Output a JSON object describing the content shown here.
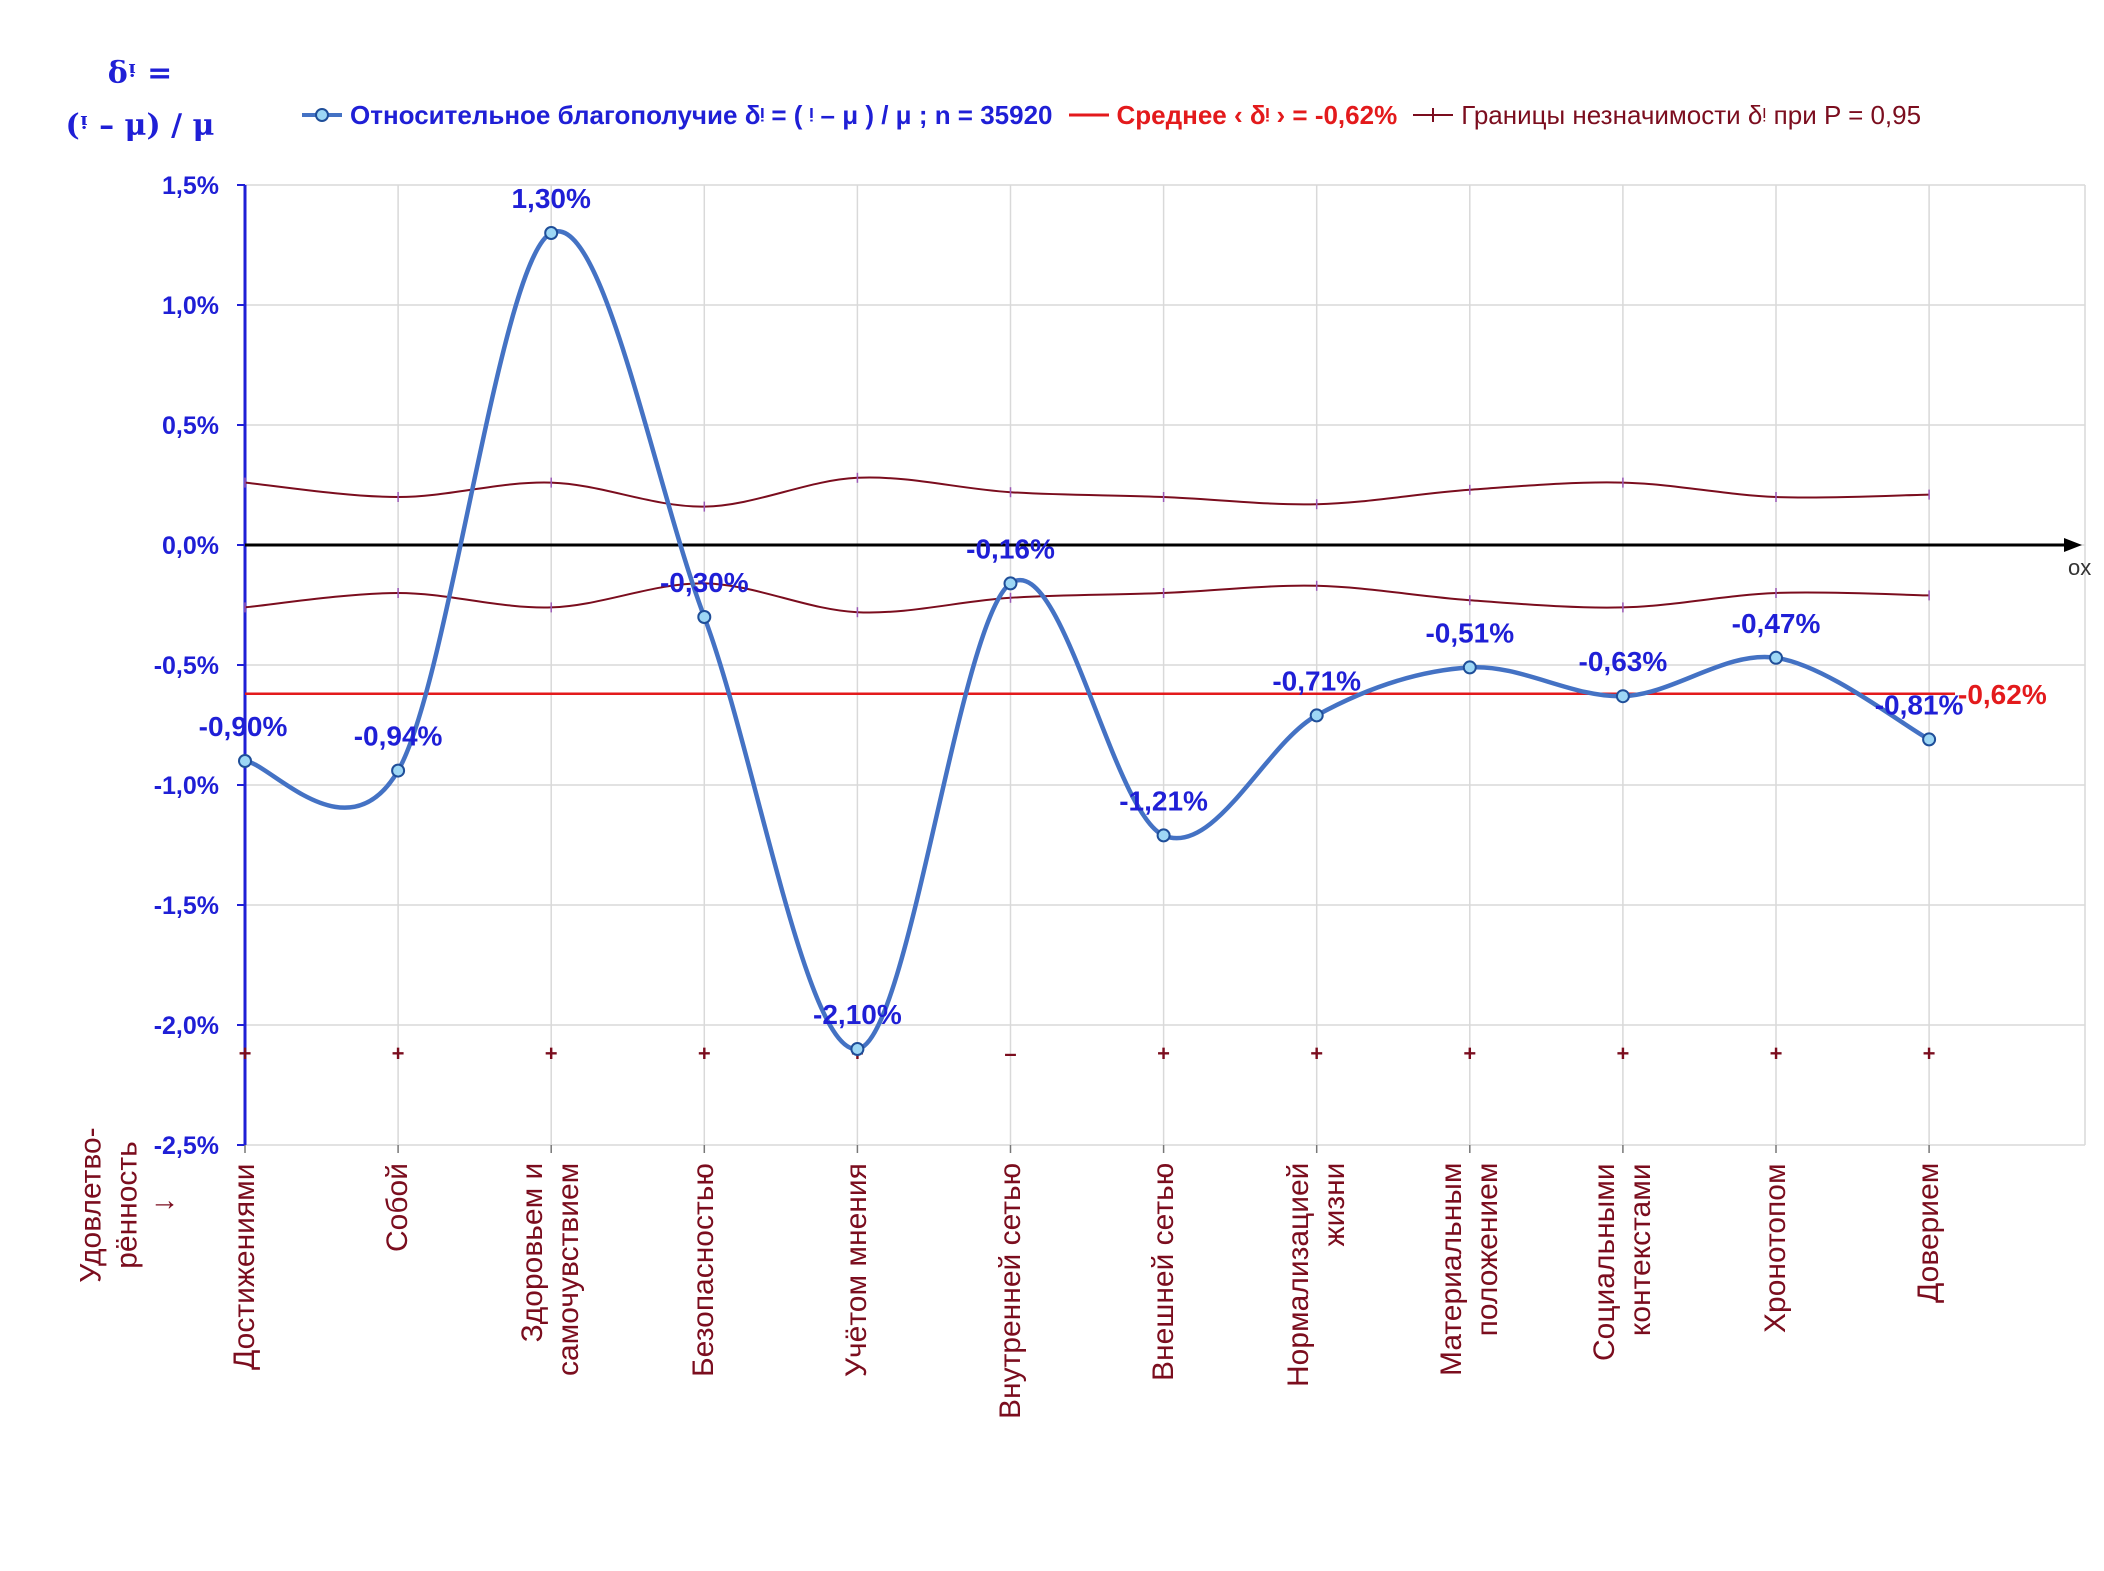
{
  "y_axis_title": {
    "line1": "δᵎ =",
    "line2": "(ᵎ – μ) / μ"
  },
  "legend": {
    "series_main": "Относительное благополучие δᵎ = ( ᵎ – μ ) / μ ; n = 35920",
    "series_mean": "Среднее ‹ δᵎ › = -0,62%",
    "series_bounds": "Границы незначимости δᵎ при P = 0,95"
  },
  "ox_label": "ox",
  "side_note": "Удовлетво-\nрённость\n↓",
  "colors": {
    "main_line": "#4472c4",
    "marker_fill": "#9dd7f5",
    "data_label": "#1f1fd6",
    "mean_line": "#e31a1c",
    "bounds_line": "#7b0d1e",
    "axis_blue": "#1f1fd6",
    "grid": "#d9d9d9"
  },
  "chart_data": {
    "type": "line",
    "title": "",
    "ylim": [
      -2.5,
      1.5
    ],
    "y_ticks": [
      1.5,
      1.0,
      0.5,
      0.0,
      -0.5,
      -1.0,
      -1.5,
      -2.0,
      -2.5
    ],
    "y_tick_labels": [
      "1,5%",
      "1,0%",
      "0,5%",
      "0,0%",
      "-0,5%",
      "-1,0%",
      "-1,5%",
      "-2,0%",
      "-2,5%"
    ],
    "grid": true,
    "legend_position": "top",
    "categories": [
      "Достижениями",
      "Собой",
      "Здоровьем и\nсамочувствием",
      "Безопасностью",
      "Учётом мнения",
      "Внутренней сетью",
      "Внешней сетью",
      "Нормализацией\nжизни",
      "Материальным\nположением",
      "Социальными\nконтекстами",
      "Хронотопом",
      "Доверием"
    ],
    "series": [
      {
        "name": "Относительное благополучие δᵎ = ( ᵎ – μ ) / μ ; n = 35920",
        "values": [
          -0.9,
          -0.94,
          1.3,
          -0.3,
          -2.1,
          -0.16,
          -1.21,
          -0.71,
          -0.51,
          -0.63,
          -0.47,
          -0.81
        ],
        "labels": [
          "-0,90%",
          "-0,94%",
          "1,30%",
          "-0,30%",
          "-2,10%",
          "-0,16%",
          "-1,21%",
          "-0,71%",
          "-0,51%",
          "-0,63%",
          "-0,47%",
          "-0,81%"
        ]
      },
      {
        "name": "Среднее ‹ δᵎ › = -0,62%",
        "value": -0.62,
        "label": "-0,62%"
      },
      {
        "name": "Границы незначимости δᵎ при P = 0,95",
        "upper": [
          0.26,
          0.2,
          0.26,
          0.16,
          0.28,
          0.22,
          0.2,
          0.17,
          0.23,
          0.26,
          0.2,
          0.21
        ],
        "lower": [
          -0.26,
          -0.2,
          -0.26,
          -0.16,
          -0.28,
          -0.22,
          -0.2,
          -0.17,
          -0.23,
          -0.26,
          -0.2,
          -0.21
        ]
      }
    ],
    "significance_marks": [
      "+",
      "+",
      "+",
      "+",
      "+",
      "–",
      "+",
      "+",
      "+",
      "+",
      "+",
      "+"
    ]
  }
}
